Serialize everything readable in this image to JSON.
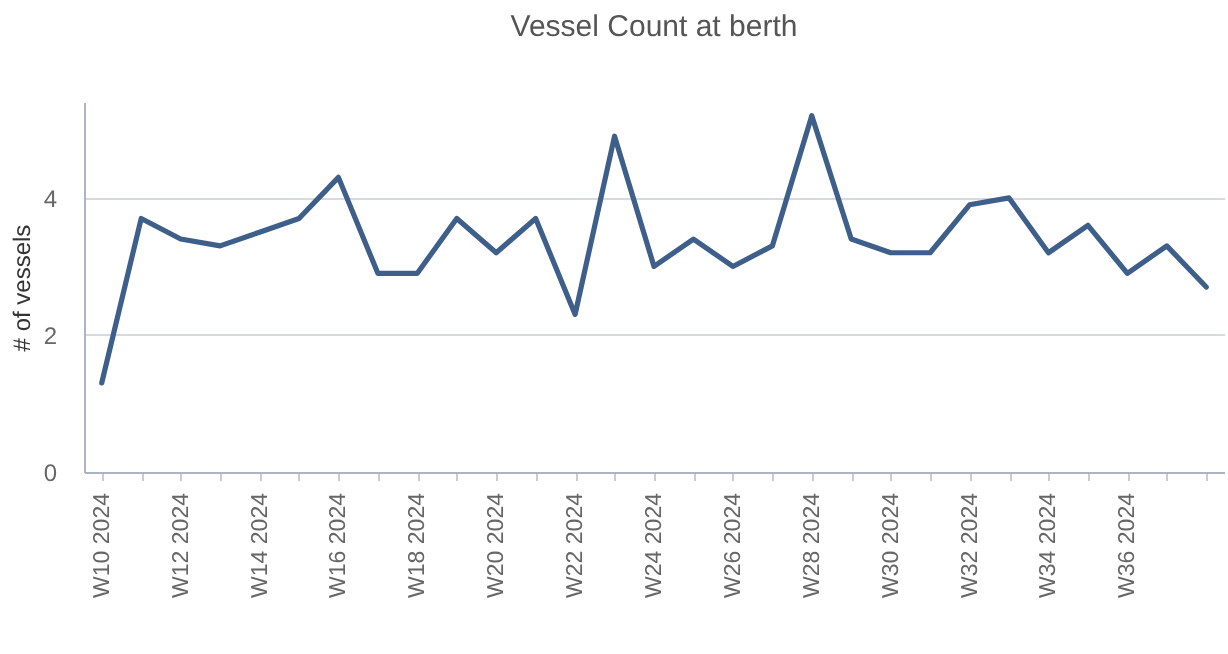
{
  "chart_data": {
    "type": "line",
    "title": "Vessel Count at berth",
    "ylabel": "# of vessels",
    "categories": [
      "W10 2024",
      null,
      "W12 2024",
      null,
      "W14 2024",
      null,
      "W16 2024",
      null,
      "W18 2024",
      null,
      "W20 2024",
      null,
      "W22 2024",
      null,
      "W24 2024",
      null,
      "W26 2024",
      null,
      "W28 2024",
      null,
      "W30 2024",
      null,
      "W32 2024",
      null,
      "W34 2024",
      null,
      "W36 2024",
      null,
      null
    ],
    "series": [
      {
        "color": "#3e5f8a",
        "values": [
          1.3,
          3.7,
          3.4,
          3.3,
          3.5,
          3.7,
          4.3,
          2.9,
          2.9,
          3.7,
          3.2,
          3.7,
          2.3,
          4.9,
          3.0,
          3.4,
          3.0,
          3.3,
          5.2,
          3.4,
          3.2,
          3.2,
          3.9,
          4.0,
          3.2,
          3.6,
          2.9,
          3.3,
          2.7
        ]
      }
    ],
    "ylim": [
      0,
      5.4
    ],
    "yticks": [
      0,
      2,
      4
    ],
    "grid": "y",
    "marker": "none",
    "line_style": "solid"
  }
}
